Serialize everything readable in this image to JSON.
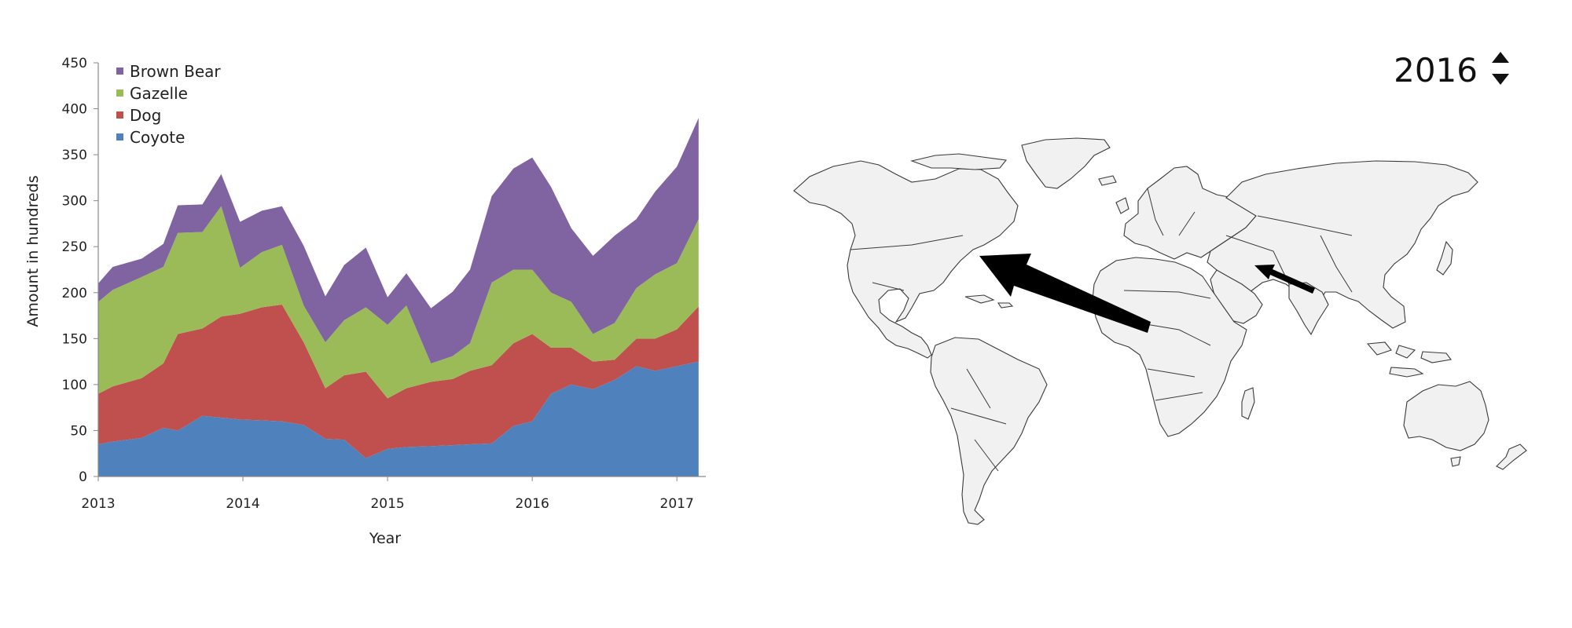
{
  "chart_data": {
    "type": "area",
    "stacked": true,
    "xlabel": "Year",
    "ylabel": "Amount in hundreds",
    "xlim": [
      2013,
      2017.2
    ],
    "ylim": [
      0,
      450
    ],
    "x_ticks": [
      "2013",
      "2014",
      "2015",
      "2016",
      "2017"
    ],
    "y_ticks": [
      "0",
      "50",
      "100",
      "150",
      "200",
      "250",
      "300",
      "350",
      "400",
      "450"
    ],
    "grid": false,
    "legend_position": "top-left",
    "x": [
      2013.0,
      2013.1,
      2013.3,
      2013.45,
      2013.55,
      2013.72,
      2013.85,
      2013.98,
      2014.13,
      2014.27,
      2014.42,
      2014.57,
      2014.7,
      2014.85,
      2015.0,
      2015.13,
      2015.3,
      2015.45,
      2015.57,
      2015.72,
      2015.87,
      2016.0,
      2016.13,
      2016.27,
      2016.42,
      2016.57,
      2016.72,
      2016.85,
      2017.0,
      2017.15
    ],
    "series": [
      {
        "name": "Coyote",
        "color": "#4f81bd",
        "values": [
          35,
          38,
          42,
          53,
          50,
          66,
          64,
          62,
          61,
          60,
          56,
          41,
          40,
          20,
          30,
          32,
          33,
          34,
          35,
          36,
          55,
          60,
          90,
          100,
          95,
          105,
          120,
          115,
          120,
          125
        ]
      },
      {
        "name": "Dog",
        "color": "#c0504d",
        "values": [
          55,
          60,
          65,
          70,
          105,
          95,
          110,
          115,
          123,
          127,
          90,
          55,
          70,
          94,
          55,
          64,
          70,
          72,
          80,
          85,
          90,
          95,
          50,
          40,
          30,
          22,
          30,
          35,
          40,
          60
        ]
      },
      {
        "name": "Gazelle",
        "color": "#9bbb59",
        "values": [
          100,
          105,
          110,
          105,
          110,
          105,
          120,
          50,
          60,
          65,
          40,
          50,
          60,
          70,
          80,
          90,
          20,
          25,
          30,
          90,
          80,
          70,
          60,
          50,
          30,
          40,
          55,
          70,
          72,
          95
        ]
      },
      {
        "name": "Brown Bear",
        "color": "#8064a2",
        "values": [
          20,
          25,
          20,
          25,
          30,
          30,
          35,
          50,
          45,
          42,
          65,
          50,
          60,
          65,
          30,
          35,
          60,
          70,
          80,
          94,
          110,
          122,
          115,
          80,
          85,
          95,
          75,
          90,
          105,
          110
        ]
      }
    ]
  },
  "map_panel": {
    "year": "2016",
    "year_up_icon": "triangle-up-icon",
    "year_down_icon": "triangle-down-icon",
    "arrow_icon": "migration-arrow-icon"
  }
}
